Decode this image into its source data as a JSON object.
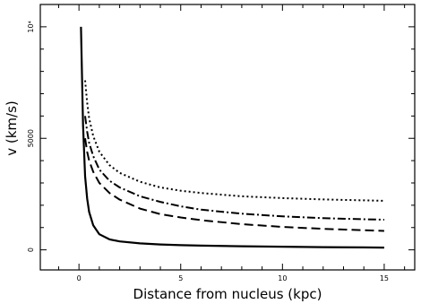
{
  "chart_data": {
    "type": "line",
    "xlabel": "Distance from nucleus (kpc)",
    "ylabel": "v (km/s)",
    "xlim": [
      -1.9,
      16.5
    ],
    "ylim": [
      -900,
      11000
    ],
    "grid": false,
    "x_ticks": [
      {
        "value": 0,
        "label": "0"
      },
      {
        "value": 5,
        "label": "5"
      },
      {
        "value": 10,
        "label": "10"
      },
      {
        "value": 15,
        "label": "15"
      }
    ],
    "y_ticks": [
      {
        "value": 0,
        "label": "0"
      },
      {
        "value": 5000,
        "label": "5000"
      },
      {
        "value": 10000,
        "label": "10⁴"
      }
    ],
    "series": [
      {
        "style": "solid",
        "x": [
          0.1,
          0.2,
          0.3,
          0.4,
          0.5,
          0.7,
          1.0,
          1.5,
          2.0,
          3.0,
          4.0,
          5.0,
          6.0,
          8.0,
          10.0,
          12.0,
          14.0,
          15.0
        ],
        "y": [
          10000,
          5600,
          3300,
          2300,
          1700,
          1100,
          700,
          470,
          380,
          290,
          240,
          210,
          190,
          160,
          140,
          120,
          110,
          100
        ]
      },
      {
        "style": "dashed",
        "x": [
          0.3,
          0.4,
          0.5,
          0.7,
          1.0,
          1.5,
          2.0,
          3.0,
          4.0,
          5.0,
          6.0,
          8.0,
          10.0,
          12.0,
          14.0,
          15.0
        ],
        "y": [
          5000,
          4400,
          4000,
          3500,
          3000,
          2550,
          2250,
          1850,
          1600,
          1450,
          1330,
          1150,
          1030,
          940,
          880,
          850
        ]
      },
      {
        "style": "dash-dot",
        "x": [
          0.3,
          0.4,
          0.5,
          0.7,
          1.0,
          1.5,
          2.0,
          3.0,
          4.0,
          5.0,
          6.0,
          8.0,
          10.0,
          12.0,
          14.0,
          15.0
        ],
        "y": [
          6000,
          5300,
          4800,
          4200,
          3600,
          3100,
          2800,
          2400,
          2150,
          1950,
          1800,
          1620,
          1500,
          1420,
          1370,
          1350
        ]
      },
      {
        "style": "dotted",
        "x": [
          0.3,
          0.4,
          0.5,
          0.7,
          1.0,
          1.5,
          2.0,
          3.0,
          4.0,
          5.0,
          6.0,
          8.0,
          10.0,
          12.0,
          14.0,
          15.0
        ],
        "y": [
          7600,
          6600,
          5900,
          5100,
          4400,
          3800,
          3450,
          3050,
          2800,
          2650,
          2550,
          2400,
          2320,
          2260,
          2220,
          2200
        ]
      }
    ],
    "colors": {
      "axes": "#000000",
      "lines": "#000000",
      "background": "#ffffff"
    }
  }
}
